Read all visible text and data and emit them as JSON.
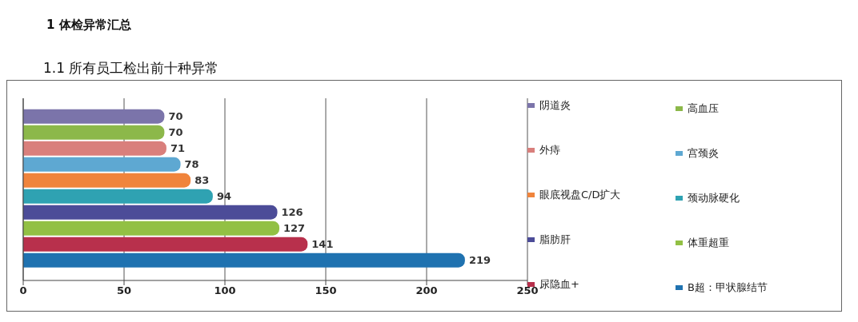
{
  "chart_data": {
    "type": "bar",
    "orientation": "horizontal",
    "title": "1 体检异常汇总",
    "subtitle": "1.1 所有员工检出前十种异常",
    "categories": [
      null
    ],
    "series": [
      {
        "name": "阴道炎",
        "color": "#7b74aa",
        "values": [
          70
        ]
      },
      {
        "name": "高血压",
        "color": "#8cb84a",
        "values": [
          70
        ]
      },
      {
        "name": "外痔",
        "color": "#d97f7c",
        "values": [
          71
        ]
      },
      {
        "name": "宫颈炎",
        "color": "#5ea8d2",
        "values": [
          78
        ]
      },
      {
        "name": "眼底视盘C/D扩大",
        "color": "#f0843c",
        "values": [
          83
        ]
      },
      {
        "name": "颈动脉硬化",
        "color": "#2fa2b2",
        "values": [
          94
        ]
      },
      {
        "name": "脂肪肝",
        "color": "#4c4c98",
        "values": [
          126
        ]
      },
      {
        "name": "体重超重",
        "color": "#92c044",
        "values": [
          127
        ]
      },
      {
        "name": "尿隐血+",
        "color": "#b8304c",
        "values": [
          141
        ]
      },
      {
        "name": "B超：甲状腺结节",
        "color": "#1f72b0",
        "values": [
          219
        ]
      }
    ],
    "xlim": [
      0,
      250
    ],
    "xticks": [
      0,
      50,
      100,
      150,
      200,
      250
    ],
    "grid": "x",
    "legend": "right",
    "data_labels": true
  }
}
